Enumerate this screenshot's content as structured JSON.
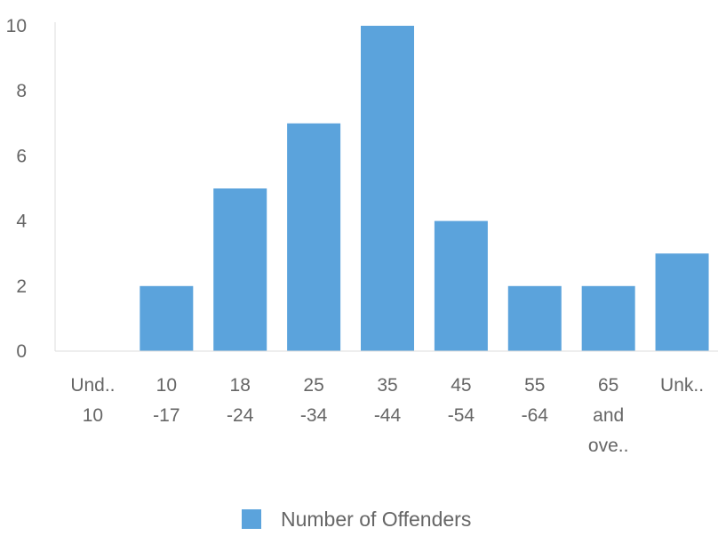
{
  "chart_data": {
    "type": "bar",
    "categories": [
      [
        "Und..",
        "10"
      ],
      [
        "10",
        "-17"
      ],
      [
        "18",
        "-24"
      ],
      [
        "25",
        "-34"
      ],
      [
        "35",
        "-44"
      ],
      [
        "45",
        "-54"
      ],
      [
        "55",
        "-64"
      ],
      [
        "65",
        "and",
        "ove.."
      ],
      [
        "Unk.."
      ]
    ],
    "series": [
      {
        "name": "Number of Offenders",
        "values": [
          0,
          2,
          5,
          7,
          10,
          4,
          2,
          2,
          3
        ],
        "color": "#5ba3dc"
      }
    ],
    "ylim": [
      0,
      10
    ],
    "yticks": [
      0,
      2,
      4,
      6,
      8,
      10
    ],
    "grid": false,
    "legend": "bottom-center",
    "colors": {
      "bar": "#5ba3dc",
      "axis": "#dddddd",
      "text": "#666666"
    }
  }
}
